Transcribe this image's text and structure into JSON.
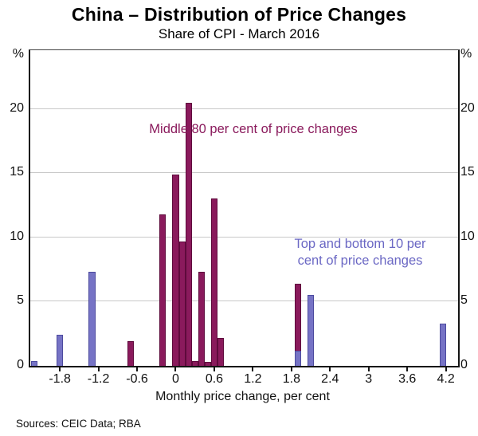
{
  "page": {
    "source_note": "Sources: CEIC Data; RBA"
  },
  "chart_data": {
    "type": "bar",
    "title": "China – Distribution of Price Changes",
    "subtitle": "Share of CPI - March 2016",
    "xlabel": "Monthly price change, per cent",
    "ylabel_left": "%",
    "ylabel_right": "%",
    "xlim": [
      -2.26,
      4.39
    ],
    "ylim": [
      0,
      24.57
    ],
    "grid": true,
    "bin_width": 0.1,
    "yticks": [
      0,
      5,
      10,
      15,
      20
    ],
    "xticks": [
      {
        "v": -1.8,
        "label": "-1.8"
      },
      {
        "v": -1.2,
        "label": "-1.2"
      },
      {
        "v": -0.6,
        "label": "-0.6"
      },
      {
        "v": 0,
        "label": "0"
      },
      {
        "v": 0.6,
        "label": "0.6"
      },
      {
        "v": 1.2,
        "label": "1.2"
      },
      {
        "v": 1.8,
        "label": "1.8"
      },
      {
        "v": 2.4,
        "label": "2.4"
      },
      {
        "v": 3,
        "label": "3"
      },
      {
        "v": 3.6,
        "label": "3.6"
      },
      {
        "v": 4.2,
        "label": "4.2"
      }
    ],
    "series": [
      {
        "name": "Middle 80 per cent of price changes",
        "color": "#8a1a5c",
        "border_color": "#5e0a3c",
        "points": [
          {
            "x": -0.7,
            "y": 1.9
          },
          {
            "x": -0.2,
            "y": 11.8
          },
          {
            "x": 0.0,
            "y": 14.9
          },
          {
            "x": 0.1,
            "y": 9.7
          },
          {
            "x": 0.2,
            "y": 20.5
          },
          {
            "x": 0.3,
            "y": 0.4
          },
          {
            "x": 0.4,
            "y": 7.3
          },
          {
            "x": 0.5,
            "y": 0.3
          },
          {
            "x": 0.6,
            "y": 13.0
          },
          {
            "x": 0.7,
            "y": 2.2
          },
          {
            "x": 1.9,
            "y": 6.4
          }
        ]
      },
      {
        "name": "Top and bottom 10 per cent of price changes",
        "color": "#7673c5",
        "border_color": "#4c4a9e",
        "points": [
          {
            "x": -2.2,
            "y": 0.4
          },
          {
            "x": -1.8,
            "y": 2.4
          },
          {
            "x": -1.3,
            "y": 7.3
          },
          {
            "x": 1.9,
            "y": 1.2
          },
          {
            "x": 2.1,
            "y": 5.5
          },
          {
            "x": 4.15,
            "y": 3.3
          }
        ]
      }
    ],
    "annotations": [
      {
        "id": "middle80",
        "color": "#8a1a5c",
        "lines": [
          "Middle 80 per cent of price changes"
        ]
      },
      {
        "id": "top10",
        "color": "#6b68c4",
        "lines": [
          "Top and bottom 10 per",
          "cent of price changes"
        ]
      }
    ]
  }
}
